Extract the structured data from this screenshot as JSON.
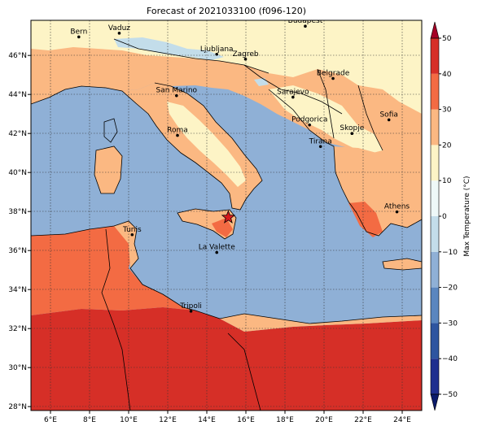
{
  "title": "Forecast of 2021033100 (f096-120)",
  "map": {
    "lon_range": [
      5,
      25
    ],
    "lat_range": [
      27.8,
      47.8
    ],
    "lon_ticks": [
      "6°E",
      "8°E",
      "10°E",
      "12°E",
      "14°E",
      "16°E",
      "18°E",
      "20°E",
      "22°E",
      "24°E"
    ],
    "lat_ticks": [
      "28°N",
      "30°N",
      "32°N",
      "34°N",
      "36°N",
      "38°N",
      "40°N",
      "42°N",
      "44°N",
      "46°N"
    ],
    "grid": true,
    "cities": [
      {
        "name": "Bern",
        "lon": 7.45,
        "lat": 46.95
      },
      {
        "name": "Vaduz",
        "lon": 9.52,
        "lat": 47.14
      },
      {
        "name": "Budapest",
        "lon": 19.04,
        "lat": 47.5
      },
      {
        "name": "Ljubljana",
        "lon": 14.51,
        "lat": 46.06
      },
      {
        "name": "Zagreb",
        "lon": 15.98,
        "lat": 45.81
      },
      {
        "name": "Belgrade",
        "lon": 20.46,
        "lat": 44.82
      },
      {
        "name": "San Marino",
        "lon": 12.45,
        "lat": 43.94
      },
      {
        "name": "Sarajevo",
        "lon": 18.41,
        "lat": 43.86
      },
      {
        "name": "Sofia",
        "lon": 23.32,
        "lat": 42.7
      },
      {
        "name": "Podgorica",
        "lon": 19.26,
        "lat": 42.44
      },
      {
        "name": "Skopje",
        "lon": 21.43,
        "lat": 42.0
      },
      {
        "name": "Roma",
        "lon": 12.5,
        "lat": 41.9
      },
      {
        "name": "Tirana",
        "lon": 19.82,
        "lat": 41.33
      },
      {
        "name": "Athens",
        "lon": 23.73,
        "lat": 37.98
      },
      {
        "name": "Tunis",
        "lon": 10.18,
        "lat": 36.81
      },
      {
        "name": "La Valette",
        "lon": 14.51,
        "lat": 35.9
      },
      {
        "name": "Tripoli",
        "lon": 13.19,
        "lat": 32.89
      }
    ],
    "marker": {
      "type": "star",
      "lon": 15.1,
      "lat": 37.7,
      "color": "#d7191c"
    }
  },
  "colorbar": {
    "label": "Max Temperature (°C)",
    "ticks": [
      "−50",
      "−40",
      "−30",
      "−20",
      "−10",
      "0",
      "10",
      "20",
      "30",
      "40",
      "50"
    ],
    "colors": {
      "-50": "#1f2f8f",
      "-40": "#2e55a0",
      "-30": "#5a86bf",
      "-20": "#8fb0d6",
      "-10": "#c3ddea",
      "0": "#eef8f8",
      "10": "#fdf4c6",
      "20": "#fbb882",
      "30": "#f36b43",
      "40": "#d62f27",
      "50": "#a50026"
    }
  },
  "colors": {
    "sea": "#8fb0d6",
    "cold": "#c3ddea",
    "cool": "#fdf4c6",
    "mild": "#fbb882",
    "warm": "#f36b43",
    "hot": "#d62f27",
    "marker": "#d7191c"
  }
}
